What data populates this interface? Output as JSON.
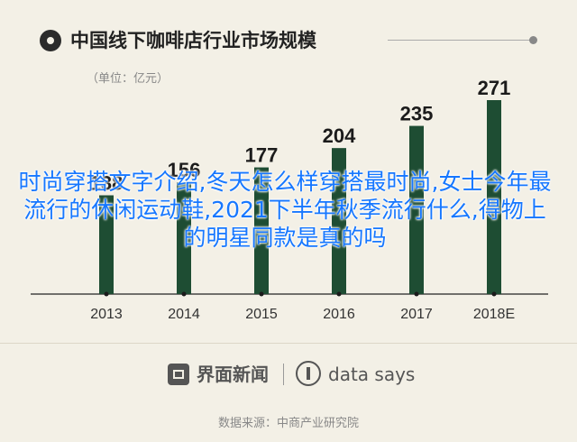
{
  "title": "中国线下咖啡店行业市场规模",
  "unit": "（单位：亿元）",
  "overlay_text": "时尚穿搭文字介绍,冬天怎么样穿搭最时尚,女士今年最流行的休闲运动鞋,2021下半年秋季流行什么,得物上的明星同款是真的吗",
  "footer": {
    "brand": "界面新闻",
    "data_brand": "data says",
    "source": "数据来源：中商产业研究院"
  },
  "colors": {
    "bar": "#1e4d33",
    "background": "#f3f0e6",
    "axis": "#444444",
    "overlay_text": "#1677ff"
  },
  "icons": {
    "title": "target-dot-icon",
    "brand": "jiemian-logo-icon",
    "data": "data-says-logo-icon"
  },
  "chart_data": {
    "type": "bar",
    "title": "中国线下咖啡店行业市场规模",
    "ylabel": "（单位：亿元）",
    "xlabel": "",
    "categories": [
      "2013",
      "2014",
      "2015",
      "2016",
      "2017",
      "2018E"
    ],
    "values": [
      138,
      156,
      177,
      204,
      235,
      271
    ],
    "ylim": [
      0,
      271
    ],
    "grid": false,
    "legend": "none"
  }
}
